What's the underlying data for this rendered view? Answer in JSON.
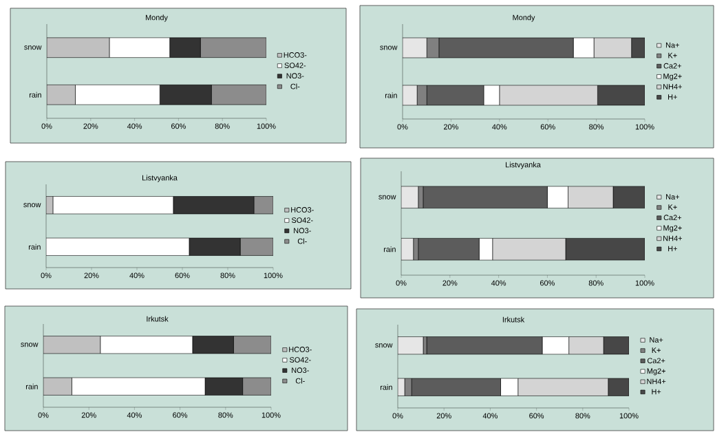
{
  "chart_data": [
    {
      "type": "bar",
      "orientation": "horizontal",
      "stacked": true,
      "title": "Mondy",
      "categories": [
        "snow",
        "rain"
      ],
      "xlim": [
        0,
        100
      ],
      "xticks": [
        {
          "value": 0,
          "label": "0%"
        },
        {
          "value": 20,
          "label": "20%"
        },
        {
          "value": 40,
          "label": "40%"
        },
        {
          "value": 60,
          "label": "60%"
        },
        {
          "value": 80,
          "label": "80%"
        },
        {
          "value": 100,
          "label": "100%"
        }
      ],
      "legend": "right",
      "series": [
        {
          "name": "HCO3-",
          "color": "#c0c0c0",
          "values": [
            28.5,
            13
          ]
        },
        {
          "name": "SO42-",
          "color": "#ffffff",
          "values": [
            27.5,
            38.5
          ]
        },
        {
          "name": "NO3-",
          "color": "#333333",
          "values": [
            14,
            23.5
          ]
        },
        {
          "name": "Cl-",
          "color": "#8c8c8c",
          "values": [
            30,
            25
          ]
        }
      ]
    },
    {
      "type": "bar",
      "orientation": "horizontal",
      "stacked": true,
      "title": "Mondy",
      "categories": [
        "snow",
        "rain"
      ],
      "xlim": [
        0,
        100
      ],
      "xticks": [
        {
          "value": 0,
          "label": "0%"
        },
        {
          "value": 20,
          "label": "20%"
        },
        {
          "value": 40,
          "label": "40%"
        },
        {
          "value": 60,
          "label": "60%"
        },
        {
          "value": 80,
          "label": "80%"
        },
        {
          "value": 100,
          "label": "100%"
        }
      ],
      "legend": "right",
      "series": [
        {
          "name": "Na+",
          "color": "#e6e6e6",
          "values": [
            10,
            6
          ]
        },
        {
          "name": "K+",
          "color": "#808080",
          "values": [
            5,
            4
          ]
        },
        {
          "name": "Ca2+",
          "color": "#5c5c5c",
          "values": [
            55.5,
            23.5
          ]
        },
        {
          "name": "Mg2+",
          "color": "#ffffff",
          "values": [
            8.5,
            6.5
          ]
        },
        {
          "name": "NH4+",
          "color": "#d4d4d4",
          "values": [
            15.5,
            40.5
          ]
        },
        {
          "name": "H+",
          "color": "#474747",
          "values": [
            5.5,
            19.5
          ]
        }
      ]
    },
    {
      "type": "bar",
      "orientation": "horizontal",
      "stacked": true,
      "title": "Listvyanka",
      "categories": [
        "snow",
        "rain"
      ],
      "xlim": [
        0,
        100
      ],
      "xticks": [
        {
          "value": 0,
          "label": "0%"
        },
        {
          "value": 20,
          "label": "20%"
        },
        {
          "value": 40,
          "label": "40%"
        },
        {
          "value": 60,
          "label": "60%"
        },
        {
          "value": 80,
          "label": "80%"
        },
        {
          "value": 100,
          "label": "100%"
        }
      ],
      "legend": "right",
      "series": [
        {
          "name": "HCO3-",
          "color": "#c0c0c0",
          "values": [
            3,
            0
          ]
        },
        {
          "name": "SO42-",
          "color": "#ffffff",
          "values": [
            53,
            63
          ]
        },
        {
          "name": "NO3-",
          "color": "#333333",
          "values": [
            35.5,
            22.5
          ]
        },
        {
          "name": "Cl-",
          "color": "#8c8c8c",
          "values": [
            8.5,
            14.5
          ]
        }
      ]
    },
    {
      "type": "bar",
      "orientation": "horizontal",
      "stacked": true,
      "title": "Listvyanka",
      "categories": [
        "snow",
        "rain"
      ],
      "xlim": [
        0,
        100
      ],
      "xticks": [
        {
          "value": 0,
          "label": "0%"
        },
        {
          "value": 20,
          "label": "20%"
        },
        {
          "value": 40,
          "label": "40%"
        },
        {
          "value": 60,
          "label": "60%"
        },
        {
          "value": 80,
          "label": "80%"
        },
        {
          "value": 100,
          "label": "100%"
        }
      ],
      "legend": "right",
      "series": [
        {
          "name": "Na+",
          "color": "#e6e6e6",
          "values": [
            7,
            5
          ]
        },
        {
          "name": "K+",
          "color": "#808080",
          "values": [
            2,
            2
          ]
        },
        {
          "name": "Ca2+",
          "color": "#5c5c5c",
          "values": [
            51,
            25
          ]
        },
        {
          "name": "Mg2+",
          "color": "#ffffff",
          "values": [
            8.5,
            5.5
          ]
        },
        {
          "name": "NH4+",
          "color": "#d4d4d4",
          "values": [
            18.5,
            30
          ]
        },
        {
          "name": "H+",
          "color": "#474747",
          "values": [
            13,
            32.5
          ]
        }
      ]
    },
    {
      "type": "bar",
      "orientation": "horizontal",
      "stacked": true,
      "title": "Irkutsk",
      "categories": [
        "snow",
        "rain"
      ],
      "xlim": [
        0,
        100
      ],
      "xticks": [
        {
          "value": 0,
          "label": "0%"
        },
        {
          "value": 20,
          "label": "20%"
        },
        {
          "value": 40,
          "label": "40%"
        },
        {
          "value": 60,
          "label": "60%"
        },
        {
          "value": 80,
          "label": "80%"
        },
        {
          "value": 100,
          "label": "100%"
        }
      ],
      "legend": "right",
      "series": [
        {
          "name": "HCO3-",
          "color": "#c0c0c0",
          "values": [
            25,
            12.5
          ]
        },
        {
          "name": "SO42-",
          "color": "#ffffff",
          "values": [
            40.5,
            58.5
          ]
        },
        {
          "name": "NO3-",
          "color": "#333333",
          "values": [
            18,
            16.5
          ]
        },
        {
          "name": "Cl-",
          "color": "#8c8c8c",
          "values": [
            16.5,
            12.5
          ]
        }
      ]
    },
    {
      "type": "bar",
      "orientation": "horizontal",
      "stacked": true,
      "title": "Irkutsk",
      "categories": [
        "snow",
        "rain"
      ],
      "xlim": [
        0,
        100
      ],
      "xticks": [
        {
          "value": 0,
          "label": "0%"
        },
        {
          "value": 20,
          "label": "20%"
        },
        {
          "value": 40,
          "label": "40%"
        },
        {
          "value": 60,
          "label": "60%"
        },
        {
          "value": 80,
          "label": "80%"
        },
        {
          "value": 100,
          "label": "100%"
        }
      ],
      "legend": "right",
      "series": [
        {
          "name": "Na+",
          "color": "#e6e6e6",
          "values": [
            11,
            3
          ]
        },
        {
          "name": "K+",
          "color": "#808080",
          "values": [
            1.5,
            3
          ]
        },
        {
          "name": "Ca2+",
          "color": "#5c5c5c",
          "values": [
            50,
            38.5
          ]
        },
        {
          "name": "Mg2+",
          "color": "#ffffff",
          "values": [
            11.5,
            7.5
          ]
        },
        {
          "name": "NH4+",
          "color": "#d4d4d4",
          "values": [
            15,
            39
          ]
        },
        {
          "name": "H+",
          "color": "#474747",
          "values": [
            11,
            9
          ]
        }
      ]
    }
  ]
}
